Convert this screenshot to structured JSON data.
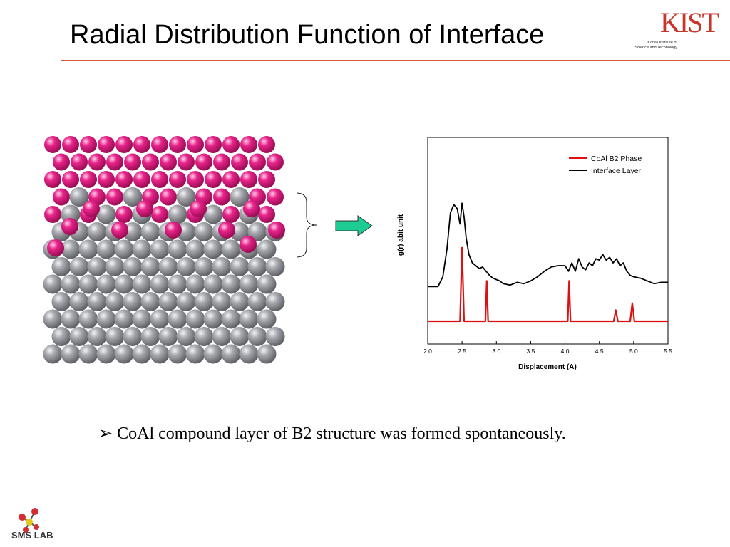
{
  "slide": {
    "title": "Radial Distribution Function of Interface",
    "bullet_marker": "➢",
    "bullet": "CoAl compound layer of B2 structure was formed spontaneously."
  },
  "logos": {
    "kist_letters": "KIST",
    "kist_sub_line1": "Korea Institute of",
    "kist_sub_line2": "Science and Technology",
    "kist_color": "#c8362b",
    "sms": "SMS LAB"
  },
  "figure": {
    "atom_colors": {
      "co_layer": "#e0147c",
      "al_substrate": "#8c8e93"
    },
    "arrow_color": "#1ccc92"
  },
  "chart_data": {
    "type": "line",
    "title": "",
    "xlabel": "Displacement (A)",
    "ylabel": "g(r) abit unit",
    "xlim": [
      2.0,
      5.5
    ],
    "xticks": [
      "2.0",
      "2.5",
      "3.0",
      "3.5",
      "4.0",
      "4.5",
      "5.0",
      "5.5"
    ],
    "ylim": [
      0,
      10
    ],
    "legend_position": "top-right",
    "series": [
      {
        "name": "CoAl B2 Phase",
        "color": "#dd1111",
        "x": [
          2.0,
          2.47,
          2.5,
          2.53,
          2.84,
          2.86,
          2.88,
          4.04,
          4.06,
          4.08,
          4.71,
          4.74,
          4.77,
          4.95,
          4.98,
          5.01,
          5.5
        ],
        "y": [
          0,
          0,
          5.3,
          0,
          0,
          2.9,
          0,
          0,
          2.9,
          0,
          0,
          0.8,
          0,
          0,
          1.3,
          0,
          0
        ]
      },
      {
        "name": "Interface Layer",
        "color": "#000000",
        "x": [
          2.0,
          2.15,
          2.22,
          2.28,
          2.33,
          2.38,
          2.43,
          2.47,
          2.5,
          2.53,
          2.56,
          2.6,
          2.65,
          2.7,
          2.75,
          2.8,
          2.85,
          2.9,
          2.95,
          3.0,
          3.05,
          3.1,
          3.2,
          3.3,
          3.4,
          3.5,
          3.6,
          3.7,
          3.8,
          3.9,
          4.0,
          4.05,
          4.1,
          4.15,
          4.2,
          4.25,
          4.3,
          4.35,
          4.4,
          4.45,
          4.5,
          4.55,
          4.6,
          4.65,
          4.7,
          4.75,
          4.8,
          4.85,
          4.9,
          4.95,
          5.0,
          5.1,
          5.2,
          5.3,
          5.4,
          5.5
        ],
        "y": [
          2.5,
          2.5,
          3.2,
          5.2,
          7.8,
          8.4,
          8.1,
          7.0,
          8.5,
          7.5,
          6.0,
          4.8,
          4.2,
          4.0,
          3.8,
          3.9,
          3.6,
          3.3,
          3.1,
          3.0,
          2.9,
          2.7,
          2.6,
          2.8,
          2.7,
          2.9,
          3.2,
          3.6,
          3.9,
          4.0,
          4.0,
          3.6,
          4.2,
          3.6,
          4.5,
          3.9,
          3.7,
          4.2,
          4.0,
          4.5,
          4.4,
          4.8,
          4.4,
          4.6,
          4.2,
          4.5,
          4.0,
          4.2,
          3.6,
          3.3,
          3.2,
          3.1,
          2.9,
          2.7,
          2.8,
          2.8
        ]
      }
    ]
  }
}
